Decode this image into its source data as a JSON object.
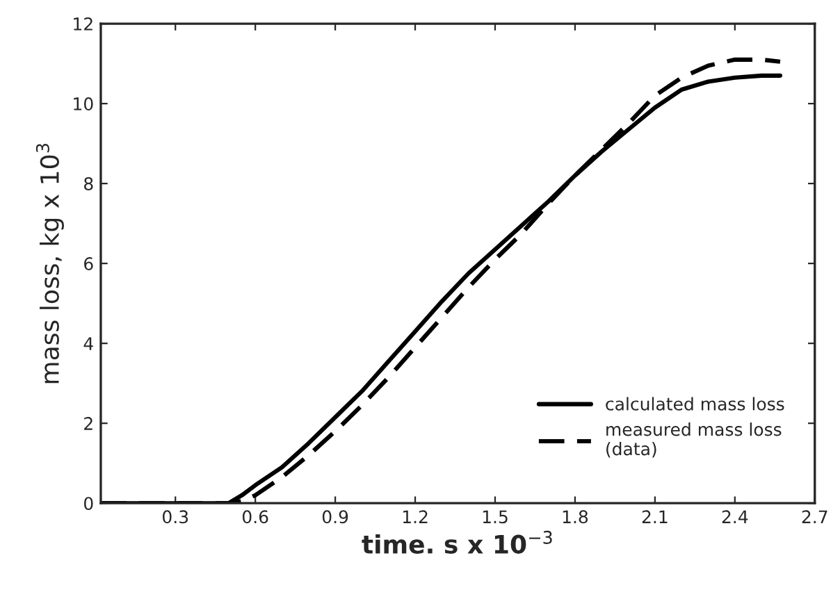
{
  "chart_data": {
    "type": "line",
    "xlabel": "time. s x 10$^{−3}$",
    "ylabel": "mass loss, kg x 10$^{3}$",
    "x": [
      0.02,
      0.5,
      0.55,
      0.6,
      0.7,
      0.8,
      0.9,
      1.0,
      1.1,
      1.2,
      1.3,
      1.4,
      1.5,
      1.6,
      1.7,
      1.8,
      1.9,
      2.0,
      2.1,
      2.2,
      2.3,
      2.4,
      2.5,
      2.57
    ],
    "series": [
      {
        "name": "calculated mass loss",
        "color": "#000000",
        "line_style": "solid",
        "values": [
          0,
          0,
          0.2,
          0.45,
          0.9,
          1.5,
          2.15,
          2.8,
          3.55,
          4.3,
          5.05,
          5.75,
          6.35,
          6.95,
          7.55,
          8.2,
          8.8,
          9.35,
          9.9,
          10.35,
          10.55,
          10.65,
          10.7,
          10.7
        ]
      },
      {
        "name": "measured mass loss\n(data)",
        "color": "#000000",
        "line_style": "dashed",
        "values": [
          0,
          0,
          0.05,
          0.2,
          0.65,
          1.2,
          1.8,
          2.45,
          3.15,
          3.9,
          4.65,
          5.4,
          6.1,
          6.75,
          7.5,
          8.2,
          8.85,
          9.5,
          10.2,
          10.65,
          10.95,
          11.1,
          11.1,
          11.05
        ]
      }
    ],
    "xlim": [
      0.02,
      2.7
    ],
    "ylim": [
      0,
      12
    ],
    "xticks": [
      0.3,
      0.6,
      0.9,
      1.2,
      1.5,
      1.8,
      2.1,
      2.4,
      2.7
    ],
    "yticks": [
      0,
      2,
      4,
      6,
      8,
      10,
      12
    ],
    "grid": false,
    "legend": "bottom right"
  }
}
